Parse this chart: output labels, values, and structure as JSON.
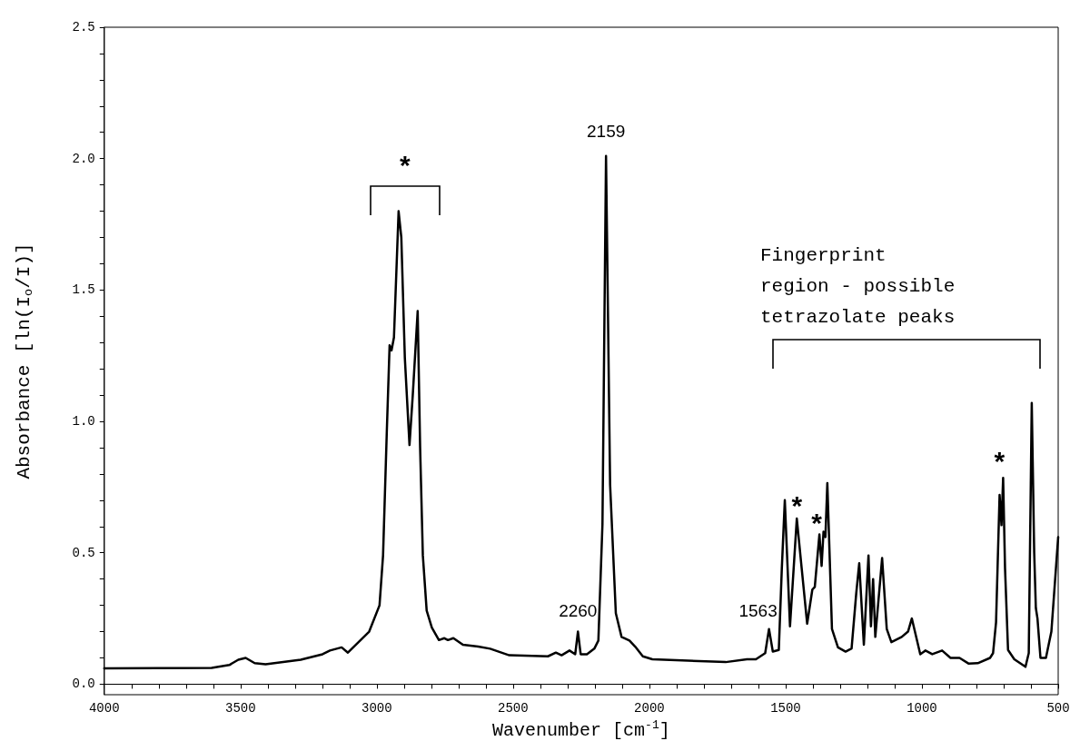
{
  "chart_data": {
    "type": "line",
    "xlabel": "Wavenumber [cm$^{-1}$]",
    "ylabel": "Absorbance [ln(I$_{o}$/I)]",
    "color": "#000000",
    "line_style": "solid",
    "xlim": [
      4000,
      500
    ],
    "ylim": [
      -0.04,
      2.5
    ],
    "xticks": [
      4000,
      {
        "value": 3900,
        "label": null
      },
      {
        "value": 3800,
        "label": null
      },
      {
        "value": 3700,
        "label": null
      },
      {
        "value": 3600,
        "label": null
      },
      3500,
      {
        "value": 3400,
        "label": null
      },
      {
        "value": 3300,
        "label": null
      },
      {
        "value": 3200,
        "label": null
      },
      {
        "value": 3100,
        "label": null
      },
      3000,
      {
        "value": 2900,
        "label": null
      },
      {
        "value": 2800,
        "label": null
      },
      {
        "value": 2700,
        "label": null
      },
      {
        "value": 2600,
        "label": null
      },
      2500,
      {
        "value": 2400,
        "label": null
      },
      {
        "value": 2300,
        "label": null
      },
      {
        "value": 2200,
        "label": null
      },
      {
        "value": 2100,
        "label": null
      },
      2000,
      {
        "value": 1900,
        "label": null
      },
      {
        "value": 1800,
        "label": null
      },
      {
        "value": 1700,
        "label": null
      },
      {
        "value": 1600,
        "label": null
      },
      1500,
      {
        "value": 1400,
        "label": null
      },
      {
        "value": 1300,
        "label": null
      },
      {
        "value": 1200,
        "label": null
      },
      {
        "value": 1100,
        "label": null
      },
      1000,
      {
        "value": 900,
        "label": null
      },
      {
        "value": 800,
        "label": null
      },
      {
        "value": 700,
        "label": null
      },
      {
        "value": 600,
        "label": null
      },
      500
    ],
    "yticks": [
      {
        "value": 0,
        "label": "0.0"
      },
      {
        "value": 0.1,
        "label": null
      },
      {
        "value": 0.2,
        "label": null
      },
      {
        "value": 0.3,
        "label": null
      },
      {
        "value": 0.4,
        "label": null
      },
      0.5,
      {
        "value": 0.6,
        "label": null
      },
      {
        "value": 0.7,
        "label": null
      },
      {
        "value": 0.8,
        "label": null
      },
      {
        "value": 0.9,
        "label": null
      },
      {
        "value": 1,
        "label": "1.0"
      },
      {
        "value": 1.1,
        "label": null
      },
      {
        "value": 1.2,
        "label": null
      },
      {
        "value": 1.3,
        "label": null
      },
      {
        "value": 1.4,
        "label": null
      },
      1.5,
      {
        "value": 1.6,
        "label": null
      },
      {
        "value": 1.7,
        "label": null
      },
      {
        "value": 1.8,
        "label": null
      },
      {
        "value": 1.9,
        "label": null
      },
      {
        "value": 2,
        "label": "2.0"
      },
      {
        "value": 2.1,
        "label": null
      },
      {
        "value": 2.2,
        "label": null
      },
      {
        "value": 2.3,
        "label": null
      },
      {
        "value": 2.4,
        "label": null
      },
      2.5
    ],
    "x": [
      4000,
      3606,
      3541,
      3508,
      3481,
      3448,
      3408,
      3279,
      3199,
      3172,
      3129,
      3106,
      3028,
      2990,
      2977,
      2963,
      2953,
      2946,
      2937,
      2920,
      2910,
      2897,
      2880,
      2868,
      2850,
      2841,
      2831,
      2817,
      2798,
      2772,
      2752,
      2739,
      2719,
      2684,
      2628,
      2584,
      2514,
      2372,
      2343,
      2322,
      2293,
      2272,
      2262,
      2252,
      2229,
      2202,
      2187,
      2172,
      2159,
      2144,
      2123,
      2102,
      2073,
      2052,
      2024,
      1989,
      1720,
      1642,
      1609,
      1575,
      1561,
      1547,
      1525,
      1514,
      1503,
      1484,
      1459,
      1441,
      1421,
      1402,
      1393,
      1376,
      1368,
      1361,
      1354,
      1347,
      1330,
      1308,
      1280,
      1258,
      1241,
      1230,
      1213,
      1196,
      1187,
      1179,
      1171,
      1146,
      1129,
      1112,
      1074,
      1051,
      1037,
      1006,
      987,
      962,
      926,
      895,
      862,
      828,
      795,
      750,
      739,
      728,
      715,
      708,
      702,
      695,
      684,
      661,
      620,
      608,
      597,
      588,
      582,
      576,
      565,
      545,
      525,
      500
    ],
    "values": [
      0.06,
      0.062,
      0.073,
      0.093,
      0.1,
      0.08,
      0.076,
      0.093,
      0.114,
      0.128,
      0.14,
      0.12,
      0.2,
      0.3,
      0.49,
      0.97,
      1.29,
      1.27,
      1.32,
      1.8,
      1.7,
      1.24,
      0.91,
      1.1,
      1.42,
      0.9,
      0.49,
      0.28,
      0.215,
      0.168,
      0.175,
      0.168,
      0.175,
      0.15,
      0.143,
      0.135,
      0.11,
      0.106,
      0.12,
      0.11,
      0.128,
      0.114,
      0.2,
      0.114,
      0.114,
      0.135,
      0.166,
      0.61,
      2.01,
      0.76,
      0.27,
      0.18,
      0.166,
      0.143,
      0.106,
      0.095,
      0.084,
      0.095,
      0.095,
      0.118,
      0.21,
      0.124,
      0.13,
      0.44,
      0.7,
      0.22,
      0.63,
      0.44,
      0.23,
      0.36,
      0.37,
      0.57,
      0.45,
      0.58,
      0.56,
      0.765,
      0.21,
      0.14,
      0.124,
      0.136,
      0.345,
      0.46,
      0.15,
      0.49,
      0.22,
      0.4,
      0.18,
      0.48,
      0.21,
      0.16,
      0.18,
      0.2,
      0.25,
      0.114,
      0.128,
      0.114,
      0.128,
      0.1,
      0.1,
      0.078,
      0.08,
      0.1,
      0.118,
      0.235,
      0.72,
      0.605,
      0.785,
      0.44,
      0.13,
      0.095,
      0.066,
      0.118,
      1.07,
      0.5,
      0.29,
      0.25,
      0.1,
      0.1,
      0.2,
      0.56
    ],
    "annotations": [
      {
        "text": "*",
        "x": 2920,
        "y": 1.8
      },
      {
        "text": "2159",
        "x": 2159,
        "y": 2.01
      },
      {
        "text": "2260",
        "x": 2262,
        "y": 0.2
      },
      {
        "text": "1563",
        "x": 1561,
        "y": 0.21
      },
      {
        "text": "*",
        "x": 1459,
        "y": 0.63
      },
      {
        "text": "*",
        "x": 1376,
        "y": 0.57
      },
      {
        "text": "*",
        "x": 702,
        "y": 0.785
      },
      "Fingerprint\nregion - possible\ntetrazolate peaks"
    ]
  }
}
